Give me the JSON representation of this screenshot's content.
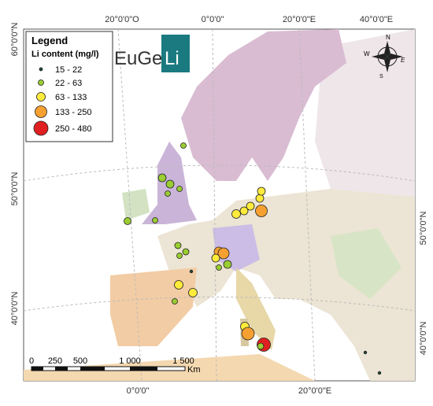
{
  "graticule": {
    "top": [
      "20°0'0\"O",
      "0°0'0\"",
      "20°0'0\"E",
      "40°0'0\"E"
    ],
    "bottom": [
      "0°0'0\"",
      "20°0'0\"E"
    ],
    "left": [
      "60°0'0\"N",
      "50°0'0\"N",
      "40°0'0\"N"
    ],
    "right": [
      "50°0'0\"N",
      "40°0'0\"N"
    ]
  },
  "legend": {
    "title": "Legend",
    "subtitle": "Li content (mg/l)",
    "classes": [
      {
        "label": "15 - 22",
        "color": "#1f4a3a"
      },
      {
        "label": "22 - 63",
        "color": "#9acd32"
      },
      {
        "label": "63 - 133",
        "color": "#ffeb3b"
      },
      {
        "label": "133 - 250",
        "color": "#f5a030"
      },
      {
        "label": "250 - 480",
        "color": "#e02020"
      }
    ]
  },
  "logo": {
    "text": "EuGe",
    "highlight": "Li"
  },
  "scale_bar": {
    "labels": [
      "0",
      "250",
      "500",
      "1 000",
      "1 500"
    ],
    "unit": "Km"
  },
  "compass": {
    "n": "N",
    "e": "E",
    "s": "S",
    "w": "W"
  }
}
